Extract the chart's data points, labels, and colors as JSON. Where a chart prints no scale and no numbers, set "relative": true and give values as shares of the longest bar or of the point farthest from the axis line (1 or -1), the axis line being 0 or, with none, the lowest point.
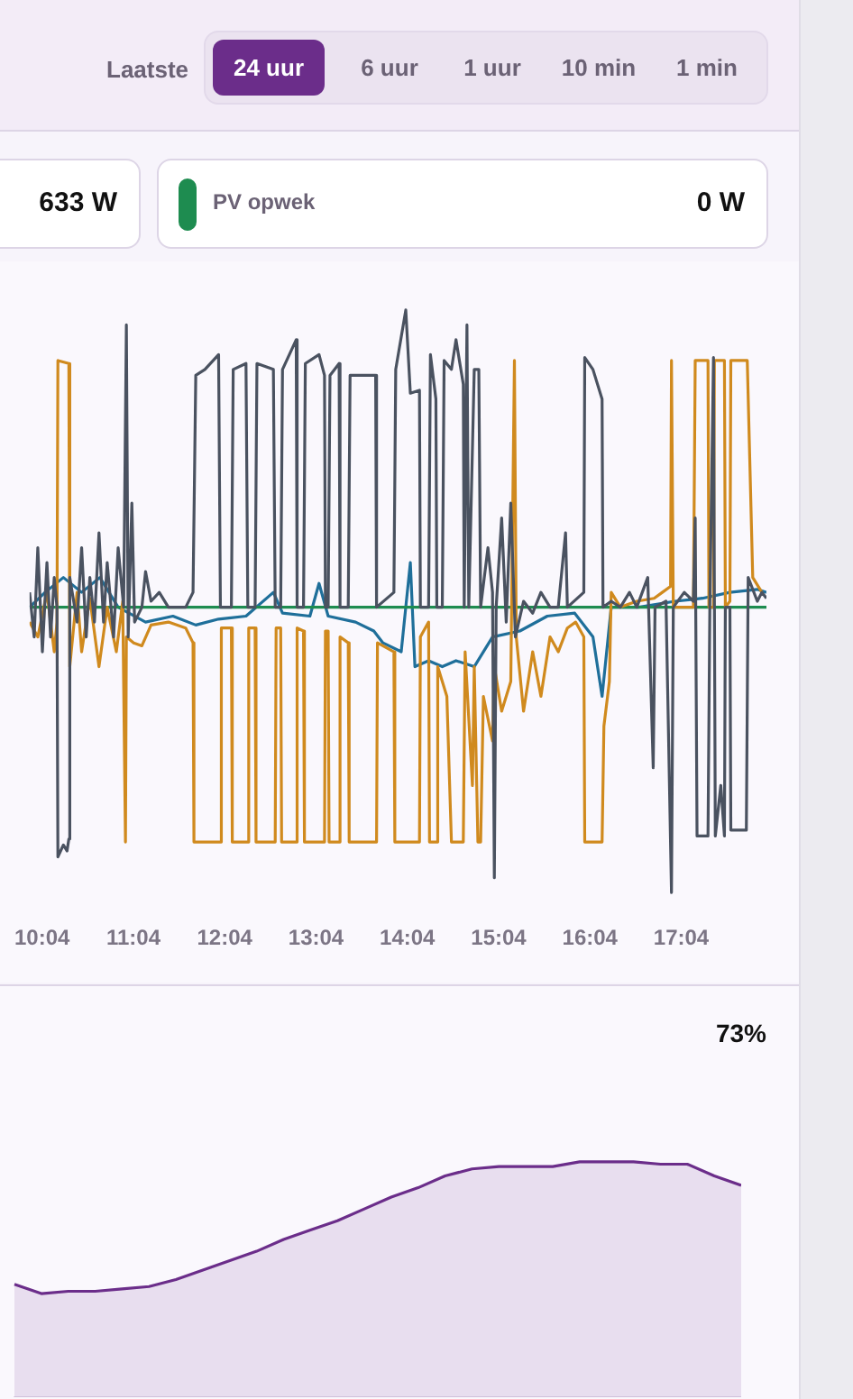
{
  "chart_data": [
    {
      "type": "other",
      "annotations": [
        "Laatste",
        "24 uur",
        "6 uur",
        "1 uur",
        "10 min",
        "1 min"
      ]
    },
    {
      "type": "line",
      "relative": true,
      "marker": "none",
      "line_style": "solid",
      "legend": "top",
      "annotations": [
        "633 W",
        "0 W"
      ],
      "xlim": [
        9.93,
        18.0
      ],
      "xticks": [
        {
          "value": 10.067,
          "label": "10:04"
        },
        {
          "value": 11.067,
          "label": "11:04"
        },
        {
          "value": 12.067,
          "label": "12:04"
        },
        {
          "value": 13.067,
          "label": "13:04"
        },
        {
          "value": 14.067,
          "label": "14:04"
        },
        {
          "value": 15.067,
          "label": "15:04"
        },
        {
          "value": 16.067,
          "label": "16:04"
        },
        {
          "value": 17.067,
          "label": "17:04"
        }
      ],
      "series": [
        {
          "color": "#1f6f9a",
          "x": [
            9.93,
            10.1,
            10.3,
            10.5,
            10.7,
            10.9,
            11.2,
            11.5,
            11.75,
            12.0,
            12.3,
            12.6,
            12.7,
            13.0,
            13.1,
            13.2,
            13.5,
            13.7,
            13.8,
            14.0,
            14.1,
            14.15,
            14.3,
            14.45,
            14.6,
            14.8,
            15.0,
            15.3,
            15.6,
            15.9,
            16.1,
            16.2,
            16.3,
            16.6,
            17.0,
            17.3,
            17.6,
            17.9,
            18.0
          ],
          "values": [
            0.0,
            0.05,
            0.1,
            0.05,
            0.1,
            0.0,
            -0.05,
            -0.03,
            -0.06,
            -0.04,
            -0.03,
            0.05,
            -0.02,
            -0.03,
            0.08,
            -0.03,
            -0.05,
            -0.08,
            -0.12,
            -0.15,
            0.15,
            -0.2,
            -0.18,
            -0.2,
            -0.18,
            -0.2,
            -0.1,
            -0.08,
            -0.03,
            -0.02,
            -0.1,
            -0.3,
            0.0,
            0.0,
            0.02,
            0.03,
            0.05,
            0.06,
            0.05
          ]
        },
        {
          "name": "PV opwek",
          "color": "#1e8c50",
          "x": [
            9.93,
            18.0
          ],
          "values": [
            0,
            0
          ]
        },
        {
          "color": "#d08a1e",
          "x": [
            9.93,
            10.02,
            10.12,
            10.2,
            10.23,
            10.24,
            10.36,
            10.37,
            10.45,
            10.5,
            10.59,
            10.69,
            10.78,
            10.88,
            10.95,
            10.98,
            10.99,
            11.07,
            11.16,
            11.26,
            11.45,
            11.64,
            11.72,
            11.73,
            12.02,
            12.03,
            12.14,
            12.15,
            12.32,
            12.33,
            12.4,
            12.41,
            12.62,
            12.63,
            12.68,
            12.69,
            12.85,
            12.86,
            12.93,
            12.94,
            13.16,
            13.17,
            13.2,
            13.21,
            13.32,
            13.33,
            13.42,
            13.43,
            13.73,
            13.74,
            13.92,
            13.93,
            14.2,
            14.21,
            14.3,
            14.31,
            14.39,
            14.4,
            14.5,
            14.55,
            14.68,
            14.7,
            14.78,
            14.8,
            14.84,
            14.87,
            14.9,
            15.0,
            15.02,
            15.1,
            15.2,
            15.24,
            15.26,
            15.34,
            15.44,
            15.53,
            15.63,
            15.72,
            15.82,
            15.91,
            16.0,
            16.01,
            16.2,
            16.22,
            16.28,
            16.3,
            16.4,
            16.58,
            16.77,
            16.86,
            16.95,
            16.96,
            16.98,
            17.2,
            17.22,
            17.36,
            17.37,
            17.42,
            17.43,
            17.54,
            17.55,
            17.6,
            17.61,
            17.79,
            17.85,
            17.95
          ],
          "values": [
            -0.05,
            -0.1,
            0.05,
            -0.15,
            -0.05,
            0.83,
            0.82,
            -0.2,
            0.05,
            -0.15,
            0.03,
            -0.2,
            0.0,
            -0.15,
            0.02,
            -0.79,
            -0.1,
            -0.12,
            -0.13,
            -0.06,
            -0.05,
            -0.07,
            -0.12,
            -0.79,
            -0.79,
            -0.07,
            -0.07,
            -0.79,
            -0.79,
            -0.07,
            -0.07,
            -0.79,
            -0.79,
            -0.07,
            -0.07,
            -0.79,
            -0.79,
            -0.07,
            -0.08,
            -0.79,
            -0.79,
            -0.08,
            -0.08,
            -0.79,
            -0.79,
            -0.1,
            -0.12,
            -0.79,
            -0.79,
            -0.12,
            -0.15,
            -0.79,
            -0.79,
            -0.1,
            -0.05,
            -0.79,
            -0.79,
            -0.2,
            -0.3,
            -0.79,
            -0.79,
            -0.15,
            -0.6,
            -0.2,
            -0.79,
            -0.79,
            -0.3,
            -0.45,
            -0.2,
            -0.35,
            -0.25,
            0.83,
            -0.1,
            -0.35,
            -0.15,
            -0.3,
            -0.1,
            -0.15,
            -0.07,
            -0.05,
            -0.1,
            -0.79,
            -0.79,
            -0.4,
            -0.25,
            0.05,
            0.0,
            0.02,
            0.03,
            0.05,
            0.07,
            0.83,
            0.0,
            0.0,
            0.83,
            0.83,
            0.0,
            0.0,
            0.83,
            0.83,
            0.0,
            0.02,
            0.83,
            0.83,
            0.1,
            0.05
          ]
        },
        {
          "color": "#4a5260",
          "x": [
            9.93,
            9.98,
            10.02,
            10.07,
            10.12,
            10.16,
            10.2,
            10.23,
            10.24,
            10.3,
            10.34,
            10.36,
            10.37,
            10.45,
            10.5,
            10.55,
            10.59,
            10.64,
            10.69,
            10.74,
            10.78,
            10.85,
            10.9,
            10.96,
            10.99,
            11.01,
            11.05,
            11.08,
            11.16,
            11.2,
            11.26,
            11.35,
            11.45,
            11.64,
            11.72,
            11.75,
            11.85,
            12.0,
            12.02,
            12.14,
            12.16,
            12.3,
            12.32,
            12.4,
            12.42,
            12.6,
            12.62,
            12.68,
            12.7,
            12.85,
            12.86,
            12.93,
            12.95,
            13.1,
            13.16,
            13.17,
            13.2,
            13.22,
            13.32,
            13.33,
            13.42,
            13.44,
            13.72,
            13.73,
            13.92,
            13.94,
            14.05,
            14.1,
            14.2,
            14.21,
            14.3,
            14.32,
            14.38,
            14.39,
            14.45,
            14.47,
            14.55,
            14.6,
            14.68,
            14.69,
            14.72,
            14.74,
            14.8,
            14.85,
            14.87,
            14.95,
            15.0,
            15.02,
            15.04,
            15.1,
            15.15,
            15.2,
            15.25,
            15.34,
            15.44,
            15.53,
            15.63,
            15.72,
            15.8,
            15.82,
            16.0,
            16.01,
            16.1,
            16.2,
            16.21,
            16.3,
            16.4,
            16.5,
            16.58,
            16.7,
            16.76,
            16.78,
            16.9,
            16.96,
            16.98,
            17.1,
            17.2,
            17.22,
            17.24,
            17.36,
            17.38,
            17.42,
            17.44,
            17.5,
            17.54,
            17.55,
            17.6,
            17.61,
            17.78,
            17.8,
            17.9,
            17.95,
            18.0
          ],
          "values": [
            0.05,
            -0.1,
            0.2,
            -0.15,
            0.15,
            -0.1,
            0.1,
            0.0,
            -0.84,
            -0.8,
            -0.82,
            -0.78,
            0.1,
            -0.05,
            0.2,
            -0.1,
            0.1,
            -0.05,
            0.25,
            -0.05,
            0.15,
            -0.1,
            0.2,
            0.0,
            0.95,
            -0.1,
            0.35,
            -0.05,
            0.0,
            0.12,
            0.02,
            0.05,
            0.0,
            0.0,
            0.05,
            0.78,
            0.8,
            0.85,
            0.0,
            0.0,
            0.8,
            0.82,
            0.0,
            0.0,
            0.82,
            0.8,
            0.0,
            0.0,
            0.8,
            0.9,
            0.0,
            0.0,
            0.82,
            0.85,
            0.78,
            0.0,
            0.0,
            0.78,
            0.82,
            0.0,
            0.0,
            0.78,
            0.78,
            0.0,
            0.05,
            0.8,
            1.0,
            0.72,
            0.73,
            0.0,
            0.0,
            0.85,
            0.7,
            0.0,
            0.0,
            0.83,
            0.8,
            0.9,
            0.75,
            0.0,
            0.95,
            0.0,
            0.8,
            0.8,
            0.0,
            0.2,
            0.05,
            -0.91,
            0.0,
            0.3,
            -0.05,
            0.35,
            -0.1,
            0.02,
            -0.02,
            0.05,
            0.0,
            0.0,
            0.25,
            0.0,
            0.05,
            0.84,
            0.8,
            0.7,
            0.0,
            0.02,
            0.0,
            0.05,
            0.0,
            0.1,
            -0.54,
            0.0,
            0.02,
            -0.96,
            0.0,
            0.05,
            0.02,
            0.3,
            -0.77,
            -0.77,
            0.0,
            0.84,
            -0.77,
            -0.6,
            -0.77,
            0.0,
            0.0,
            -0.75,
            -0.75,
            0.1,
            0.02,
            0.05,
            0.03
          ]
        }
      ]
    },
    {
      "type": "area",
      "relative": true,
      "tick_labels": false,
      "annotations": [
        "73%"
      ],
      "categories": [
        null,
        null,
        null,
        null,
        null,
        null,
        null,
        null,
        null,
        null,
        null,
        null,
        null,
        null,
        null,
        null,
        null,
        null,
        null,
        null,
        null,
        null,
        null,
        null,
        null,
        null,
        null,
        null
      ],
      "series": [
        {
          "color": "#6b2d8a",
          "values": [
            0.48,
            0.44,
            0.45,
            0.45,
            0.46,
            0.47,
            0.5,
            0.54,
            0.58,
            0.62,
            0.67,
            0.71,
            0.75,
            0.8,
            0.85,
            0.89,
            0.94,
            0.97,
            0.98,
            0.98,
            0.98,
            1.0,
            1.0,
            1.0,
            0.99,
            0.99,
            0.94,
            0.9
          ]
        }
      ]
    }
  ]
}
